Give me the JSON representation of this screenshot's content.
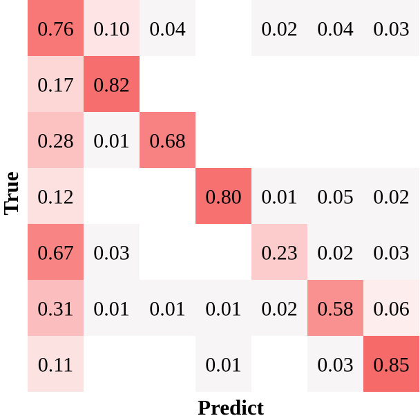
{
  "chart_data": {
    "type": "heatmap",
    "title": "",
    "xlabel": "Predict",
    "ylabel": "True",
    "x_tick_labels": [],
    "y_tick_labels": [],
    "color_low": "#ffffff",
    "color_high": "#f76a6a",
    "values": [
      [
        0.76,
        0.1,
        0.04,
        null,
        0.02,
        0.04,
        0.03
      ],
      [
        0.17,
        0.82,
        null,
        null,
        null,
        null,
        null
      ],
      [
        0.28,
        0.01,
        0.68,
        null,
        null,
        null,
        null
      ],
      [
        0.12,
        null,
        null,
        0.8,
        0.01,
        0.05,
        0.02
      ],
      [
        0.67,
        0.03,
        null,
        null,
        0.23,
        0.02,
        0.03
      ],
      [
        0.31,
        0.01,
        0.01,
        0.01,
        0.02,
        0.58,
        0.06
      ],
      [
        0.11,
        null,
        null,
        0.01,
        null,
        0.03,
        0.85
      ]
    ],
    "value_labels": [
      [
        "0.76",
        "0.10",
        "0.04",
        "",
        "0.02",
        "0.04",
        "0.03"
      ],
      [
        "0.17",
        "0.82",
        "",
        "",
        "",
        "",
        ""
      ],
      [
        "0.28",
        "0.01",
        "0.68",
        "",
        "",
        "",
        ""
      ],
      [
        "0.12",
        "",
        "",
        "0.80",
        "0.01",
        "0.05",
        "0.02"
      ],
      [
        "0.67",
        "0.03",
        "",
        "",
        "0.23",
        "0.02",
        "0.03"
      ],
      [
        "0.31",
        "0.01",
        "0.01",
        "0.01",
        "0.02",
        "0.58",
        "0.06"
      ],
      [
        "0.11",
        "",
        "",
        "0.01",
        "",
        "0.03",
        "0.85"
      ]
    ]
  }
}
